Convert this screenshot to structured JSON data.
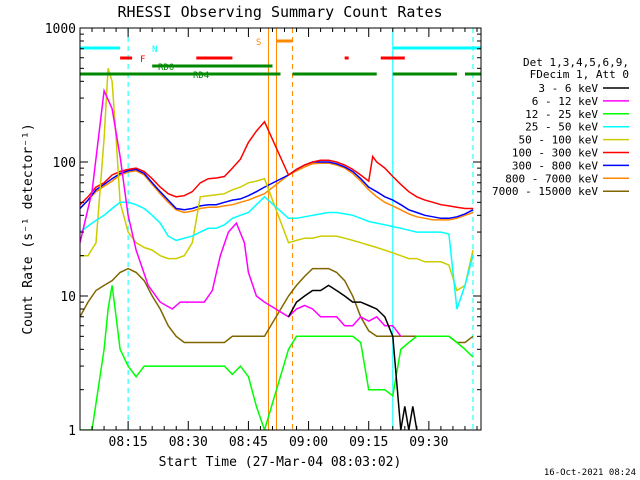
{
  "chart_data": {
    "type": "line",
    "title": "RHESSI Observing Summary Count Rates",
    "xlabel": "Start Time (27-Mar-04 08:03:02)",
    "ylabel": "Count Rate (s⁻¹ detector⁻¹)",
    "yscale": "log",
    "ylim": [
      1,
      1000
    ],
    "xlim_minutes": [
      0,
      100
    ],
    "x_tick_labels": [
      "08:15",
      "08:30",
      "08:45",
      "09:00",
      "09:15",
      "09:30"
    ],
    "x_tick_minutes": [
      12,
      27,
      42,
      57,
      72,
      87
    ],
    "y_tick_labels": [
      "1",
      "10",
      "100",
      "1000"
    ],
    "y_tick_values": [
      1,
      10,
      100,
      1000
    ],
    "timestamp": "16-Oct-2021 08:24",
    "legend_header": [
      "Det 1,3,4,5,6,9,",
      "FDecim 1, Att 0"
    ],
    "series": [
      {
        "name": "3 - 6 keV",
        "color": "#000000",
        "x": [
          52,
          54,
          56,
          58,
          60,
          62,
          64,
          66,
          68,
          70,
          72,
          74,
          76,
          78,
          80,
          81,
          82,
          83,
          84
        ],
        "y": [
          7,
          9,
          10,
          11,
          11,
          12,
          11,
          10,
          9,
          9,
          8.5,
          8,
          7,
          5,
          1,
          1.5,
          1,
          1.5,
          1
        ]
      },
      {
        "name": "6 - 12 keV",
        "color": "#ff00ff",
        "x": [
          0,
          3,
          6,
          8,
          10,
          12,
          14,
          17,
          20,
          23,
          25,
          27,
          29,
          31,
          33,
          35,
          37,
          39,
          41,
          42,
          44,
          46,
          52,
          54,
          56,
          58,
          60,
          62,
          64,
          66,
          68,
          70,
          72,
          74,
          76,
          78,
          80
        ],
        "y": [
          25,
          60,
          340,
          250,
          110,
          40,
          22,
          12,
          9,
          8,
          9,
          9,
          9,
          9,
          11,
          20,
          30,
          35,
          25,
          15,
          10,
          9,
          7,
          8,
          8.5,
          8,
          7,
          7,
          7,
          6,
          6,
          7,
          6.5,
          7,
          6,
          6,
          5
        ]
      },
      {
        "name": "12 - 25 keV",
        "color": "#00ff00",
        "x": [
          0,
          3,
          6,
          7,
          8,
          9,
          10,
          12,
          14,
          16,
          18,
          20,
          22,
          24,
          26,
          28,
          30,
          32,
          34,
          36,
          38,
          40,
          42,
          44,
          46,
          52,
          54,
          56,
          58,
          60,
          62,
          64,
          66,
          68,
          70,
          72,
          74,
          76,
          78,
          80,
          82,
          84,
          86,
          88,
          90,
          92,
          94,
          96,
          98
        ],
        "y": [
          1,
          1,
          4,
          8,
          12,
          7,
          4,
          3,
          2.5,
          3,
          3,
          3,
          3,
          3,
          3,
          3,
          3,
          3,
          3,
          3,
          2.6,
          3,
          2.5,
          1.5,
          1,
          4,
          5,
          5,
          5,
          5,
          5,
          5,
          5,
          5,
          4.5,
          2,
          2,
          2,
          1.8,
          4,
          4.5,
          5,
          5,
          5,
          5,
          5,
          4.5,
          4,
          3.5
        ]
      },
      {
        "name": "25 - 50 keV",
        "color": "#00ffff",
        "x": [
          0,
          3,
          6,
          8,
          10,
          12,
          14,
          16,
          18,
          20,
          22,
          24,
          26,
          28,
          30,
          32,
          34,
          36,
          38,
          40,
          42,
          44,
          46,
          52,
          54,
          56,
          58,
          60,
          62,
          64,
          66,
          68,
          70,
          72,
          74,
          76,
          78,
          80,
          82,
          84,
          86,
          88,
          90,
          92,
          94,
          96,
          98
        ],
        "y": [
          30,
          35,
          40,
          45,
          50,
          50,
          48,
          45,
          40,
          35,
          28,
          26,
          27,
          28,
          30,
          32,
          32,
          34,
          38,
          40,
          42,
          48,
          55,
          38,
          38,
          39,
          40,
          41,
          42,
          42,
          41,
          40,
          38,
          36,
          35,
          34,
          33,
          32,
          31,
          30,
          30,
          30,
          30,
          29,
          8,
          12,
          20
        ]
      },
      {
        "name": "50 - 100 keV",
        "color": "#cccc00",
        "x": [
          0,
          2,
          4,
          6,
          7,
          8,
          9,
          10,
          12,
          14,
          16,
          18,
          20,
          22,
          24,
          26,
          28,
          30,
          32,
          34,
          36,
          38,
          40,
          42,
          44,
          46,
          52,
          54,
          56,
          58,
          60,
          62,
          64,
          66,
          68,
          70,
          72,
          74,
          76,
          78,
          80,
          82,
          84,
          86,
          88,
          90,
          92,
          94,
          96,
          98
        ],
        "y": [
          20,
          20,
          25,
          150,
          500,
          400,
          150,
          50,
          30,
          25,
          23,
          22,
          20,
          19,
          19,
          20,
          25,
          55,
          56,
          57,
          58,
          62,
          65,
          70,
          72,
          75,
          25,
          26,
          27,
          27,
          28,
          28,
          28,
          27,
          26,
          25,
          24,
          23,
          22,
          21,
          20,
          19,
          19,
          18,
          18,
          18,
          17,
          11,
          12,
          22
        ]
      },
      {
        "name": "100 - 300 keV",
        "color": "#ff0000",
        "x": [
          0,
          2,
          4,
          6,
          8,
          10,
          12,
          14,
          16,
          18,
          20,
          22,
          24,
          26,
          28,
          30,
          32,
          34,
          36,
          38,
          40,
          42,
          44,
          46,
          52,
          54,
          56,
          58,
          60,
          62,
          64,
          66,
          68,
          70,
          72,
          73,
          74,
          76,
          78,
          80,
          82,
          84,
          86,
          88,
          90,
          92,
          94,
          96,
          98
        ],
        "y": [
          48,
          55,
          65,
          70,
          80,
          85,
          88,
          90,
          85,
          75,
          65,
          58,
          55,
          56,
          60,
          70,
          75,
          76,
          78,
          90,
          105,
          140,
          170,
          200,
          80,
          88,
          95,
          100,
          103,
          103,
          100,
          95,
          88,
          80,
          72,
          110,
          100,
          90,
          78,
          68,
          60,
          55,
          52,
          50,
          48,
          47,
          46,
          45,
          45
        ]
      },
      {
        "name": "300 - 800 keV",
        "color": "#0000ff",
        "x": [
          0,
          2,
          4,
          6,
          8,
          10,
          12,
          14,
          16,
          18,
          20,
          22,
          24,
          26,
          28,
          30,
          32,
          34,
          36,
          38,
          40,
          42,
          44,
          46,
          52,
          54,
          56,
          58,
          60,
          62,
          64,
          66,
          68,
          70,
          72,
          74,
          76,
          78,
          80,
          82,
          84,
          86,
          88,
          90,
          92,
          94,
          96,
          98
        ],
        "y": [
          45,
          52,
          62,
          68,
          75,
          82,
          86,
          88,
          82,
          70,
          60,
          52,
          45,
          44,
          45,
          47,
          48,
          48,
          50,
          52,
          53,
          56,
          60,
          65,
          80,
          88,
          95,
          100,
          100,
          100,
          97,
          92,
          85,
          75,
          65,
          60,
          55,
          52,
          48,
          44,
          42,
          40,
          39,
          38,
          38,
          39,
          41,
          44
        ]
      },
      {
        "name": "800 - 7000 keV",
        "color": "#ff8800",
        "x": [
          0,
          2,
          4,
          6,
          8,
          10,
          12,
          14,
          16,
          18,
          20,
          22,
          24,
          26,
          28,
          30,
          32,
          34,
          36,
          38,
          40,
          42,
          44,
          46,
          52,
          54,
          56,
          58,
          60,
          62,
          64,
          66,
          68,
          70,
          72,
          74,
          76,
          78,
          80,
          82,
          84,
          86,
          88,
          90,
          92,
          94,
          96,
          98
        ],
        "y": [
          45,
          52,
          60,
          66,
          72,
          80,
          84,
          86,
          80,
          68,
          58,
          50,
          44,
          42,
          43,
          45,
          46,
          46,
          47,
          48,
          50,
          52,
          55,
          58,
          80,
          86,
          92,
          97,
          98,
          98,
          95,
          90,
          82,
          72,
          62,
          55,
          50,
          47,
          44,
          41,
          39,
          38,
          37,
          37,
          37,
          38,
          40,
          42
        ]
      },
      {
        "name": "7000 - 15000 keV",
        "color": "#806600",
        "x": [
          0,
          2,
          4,
          6,
          8,
          10,
          12,
          14,
          16,
          18,
          20,
          22,
          24,
          26,
          28,
          30,
          32,
          34,
          36,
          38,
          40,
          42,
          44,
          46,
          52,
          54,
          56,
          58,
          60,
          62,
          64,
          66,
          68,
          70,
          72,
          74,
          76,
          78,
          80,
          82,
          84,
          86,
          88,
          90,
          92,
          94,
          96,
          98
        ],
        "y": [
          7,
          9,
          11,
          12,
          13,
          15,
          16,
          15,
          13,
          10,
          8,
          6,
          5,
          4.5,
          4.5,
          4.5,
          4.5,
          4.5,
          4.5,
          5,
          5,
          5,
          5,
          5,
          10,
          12,
          14,
          16,
          16,
          16,
          15,
          13,
          10,
          7,
          5.5,
          5,
          5,
          5,
          5,
          5,
          5,
          5,
          5,
          5,
          5,
          4.5,
          4.5,
          5
        ]
      }
    ],
    "flag_bars": [
      {
        "label": "N",
        "color": "#00ffff",
        "segments": [
          [
            0,
            10
          ],
          [
            78,
            100
          ]
        ]
      },
      {
        "label": "F",
        "color": "#ff0000",
        "segments": [
          [
            10,
            13
          ],
          [
            29,
            38
          ],
          [
            66,
            67
          ],
          [
            75,
            81
          ]
        ]
      },
      {
        "label": "S",
        "color": "#ff8800",
        "segments": [
          [
            49,
            53
          ]
        ]
      },
      {
        "label": "RD0",
        "color": "#008800",
        "segments": [
          [
            18,
            48
          ]
        ]
      },
      {
        "label": "RD4",
        "color": "#008800",
        "segments": [
          [
            0,
            50
          ],
          [
            53,
            74
          ],
          [
            78,
            94
          ],
          [
            96,
            100
          ]
        ]
      }
    ],
    "vertical_lines": [
      {
        "x": 12,
        "color": "#00ffff",
        "style": "dashed"
      },
      {
        "x": 78,
        "color": "#00ffff",
        "style": "solid"
      },
      {
        "x": 98,
        "color": "#00ffff",
        "style": "dashed"
      },
      {
        "x": 47,
        "color": "#ff8800",
        "style": "solid"
      },
      {
        "x": 49,
        "color": "#ff8800",
        "style": "solid"
      },
      {
        "x": 53,
        "color": "#ff8800",
        "style": "dashed"
      }
    ]
  }
}
